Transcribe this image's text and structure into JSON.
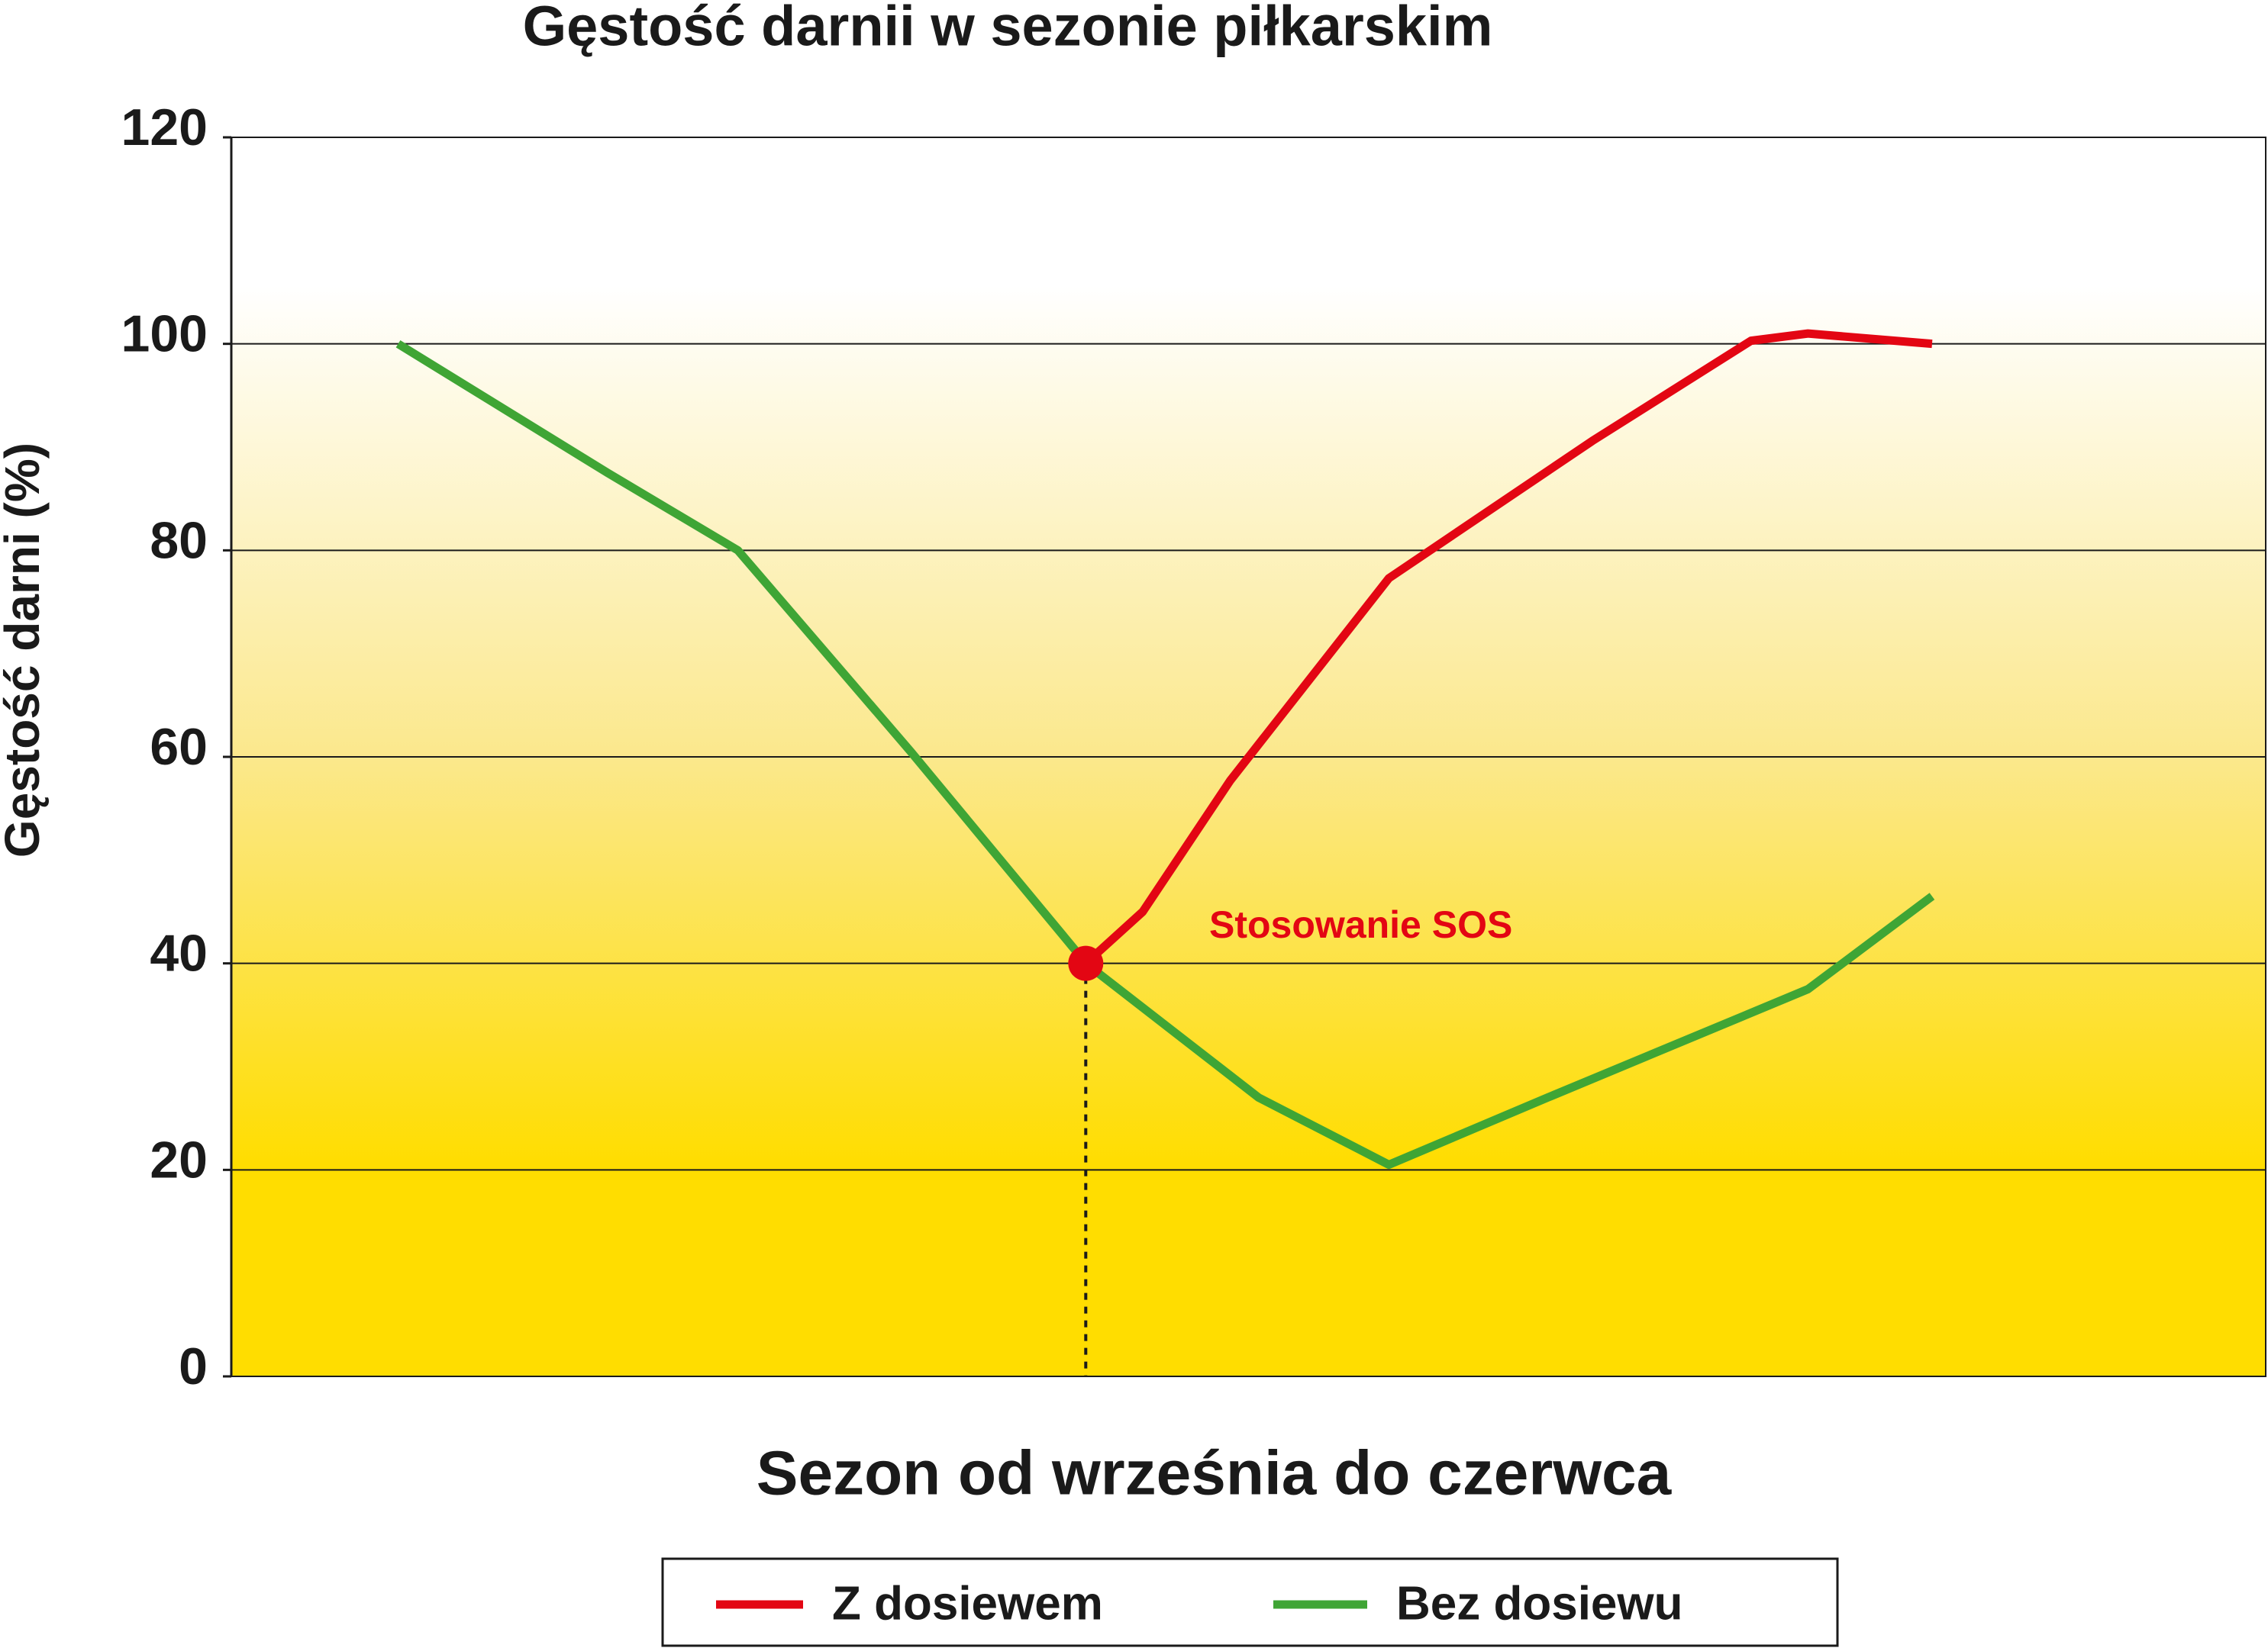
{
  "chart_data": {
    "type": "line",
    "title": "Gęstość darnii w sezonie piłkarskim",
    "x_label": "Sezon od września do czerwca",
    "y_label": "Gęstość darni (%)",
    "ylim": [
      0,
      120
    ],
    "yticks": [
      0,
      20,
      40,
      60,
      80,
      100,
      120
    ],
    "xlim": [
      0,
      100
    ],
    "grid": true,
    "annotation": "Stosowanie SOS",
    "series": [
      {
        "name": "Z dosiewem",
        "color": "#e30613",
        "x": [
          42,
          44.8,
          49.1,
          56.9,
          66.9,
          74.7,
          77.5,
          83.6
        ],
        "values": [
          40,
          45,
          57.7,
          77.3,
          90.6,
          100.3,
          101,
          100
        ]
      },
      {
        "name": "Bez dosiewu",
        "color": "#3fa535",
        "x": [
          8.2,
          18.5,
          24.9,
          33.4,
          41.6,
          42,
          50.5,
          56.9,
          64.7,
          77.5,
          83.6
        ],
        "values": [
          100,
          87.5,
          80,
          60.5,
          41,
          40,
          27,
          20.5,
          27,
          37.5,
          46.5
        ]
      }
    ]
  }
}
